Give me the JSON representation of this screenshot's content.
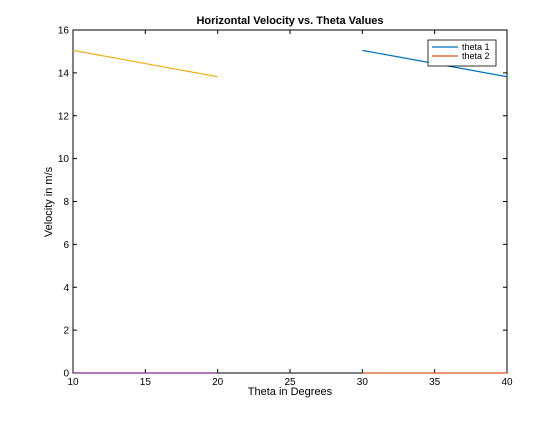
{
  "chart_data": {
    "type": "line",
    "title": "Horizontal Velocity vs. Theta Values",
    "xlabel": "Theta in Degrees",
    "ylabel": "Velocity in m/s",
    "xlim": [
      10,
      40
    ],
    "ylim": [
      0,
      16
    ],
    "xticks": [
      10,
      15,
      20,
      25,
      30,
      35,
      40
    ],
    "yticks": [
      0,
      2,
      4,
      6,
      8,
      10,
      12,
      14,
      16
    ],
    "grid": false,
    "legend_position": "top-right",
    "series": [
      {
        "name": "theta 1",
        "color": "#0072bd",
        "x": [
          30,
          40
        ],
        "y": [
          15.05,
          13.82
        ],
        "in_legend": true
      },
      {
        "name": "theta 2",
        "color": "#d95319",
        "x": [
          30,
          40
        ],
        "y": [
          0,
          0
        ],
        "in_legend": true
      },
      {
        "color": "#edb120",
        "x": [
          10,
          20
        ],
        "y": [
          15.05,
          13.82
        ],
        "in_legend": false
      },
      {
        "color": "#7e2f8e",
        "x": [
          10,
          20
        ],
        "y": [
          0,
          0
        ],
        "in_legend": false
      }
    ]
  }
}
